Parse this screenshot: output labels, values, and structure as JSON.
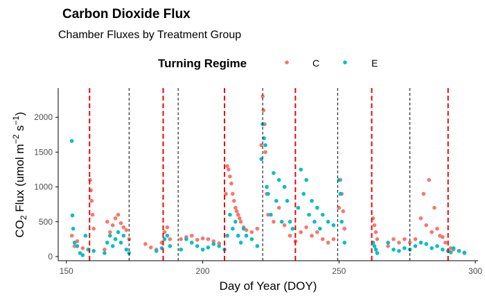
{
  "chart_data": {
    "type": "scatter",
    "title": "Carbon Dioxide Flux",
    "subtitle": "Chamber Fluxes by Treatment Group",
    "xlabel": "Day of Year (DOY)",
    "ylabel": "CO2 Flux (umol m-2 s-1)",
    "xlim": [
      147,
      301
    ],
    "ylim": [
      -60,
      2420
    ],
    "xticks": [
      150,
      200,
      250,
      300
    ],
    "yticks": [
      0,
      500,
      1000,
      1500,
      2000
    ],
    "grid": false,
    "legend": {
      "title": "Turning Regime",
      "position": "top",
      "entries": [
        {
          "label": "C",
          "color": "#F8766D"
        },
        {
          "label": "E",
          "color": "#00BFC4"
        }
      ]
    },
    "vlines_red_dashed": [
      158.5,
      185.5,
      208,
      234,
      262,
      290
    ],
    "vlines_black_dashed": [
      173,
      191,
      222,
      249.5,
      276
    ],
    "series": [
      {
        "name": "C",
        "color": "#F8766D",
        "points": [
          [
            152,
            300
          ],
          [
            153,
            150
          ],
          [
            154,
            220
          ],
          [
            156,
            120
          ],
          [
            158,
            100
          ],
          [
            158.7,
            1100
          ],
          [
            159,
            950
          ],
          [
            159.3,
            800
          ],
          [
            159.6,
            600
          ],
          [
            160,
            400
          ],
          [
            164,
            100
          ],
          [
            165,
            500
          ],
          [
            166,
            350
          ],
          [
            167,
            450
          ],
          [
            168,
            550
          ],
          [
            169,
            600
          ],
          [
            170,
            480
          ],
          [
            171,
            420
          ],
          [
            172,
            380
          ],
          [
            173,
            250
          ],
          [
            179,
            180
          ],
          [
            181,
            130
          ],
          [
            183,
            100
          ],
          [
            185,
            200
          ],
          [
            186,
            350
          ],
          [
            187,
            420
          ],
          [
            188,
            250
          ],
          [
            192,
            250
          ],
          [
            194,
            280
          ],
          [
            196,
            300
          ],
          [
            198,
            240
          ],
          [
            200,
            260
          ],
          [
            202,
            250
          ],
          [
            204,
            220
          ],
          [
            206,
            190
          ],
          [
            208.5,
            900
          ],
          [
            209,
            1300
          ],
          [
            209.5,
            1250
          ],
          [
            210,
            1150
          ],
          [
            210.5,
            1050
          ],
          [
            211,
            900
          ],
          [
            211.5,
            800
          ],
          [
            212,
            700
          ],
          [
            212.5,
            650
          ],
          [
            213,
            600
          ],
          [
            213.5,
            550
          ],
          [
            214,
            500
          ],
          [
            215,
            420
          ],
          [
            216,
            380
          ],
          [
            218,
            350
          ],
          [
            220,
            400
          ],
          [
            221.5,
            1600
          ],
          [
            222,
            2300
          ],
          [
            222.3,
            2100
          ],
          [
            222.7,
            1900
          ],
          [
            223,
            1500
          ],
          [
            223.5,
            900
          ],
          [
            224,
            600
          ],
          [
            226,
            500
          ],
          [
            228,
            700
          ],
          [
            230,
            450
          ],
          [
            232,
            300
          ],
          [
            234,
            220
          ],
          [
            236,
            350
          ],
          [
            238,
            420
          ],
          [
            240,
            300
          ],
          [
            242,
            350
          ],
          [
            244,
            250
          ],
          [
            246,
            200
          ],
          [
            248,
            250
          ],
          [
            250,
            700
          ],
          [
            250.5,
            1100
          ],
          [
            251,
            900
          ],
          [
            251.5,
            650
          ],
          [
            252,
            400
          ],
          [
            262.5,
            550
          ],
          [
            263,
            450
          ],
          [
            263.5,
            350
          ],
          [
            264,
            250
          ],
          [
            268,
            150
          ],
          [
            270,
            250
          ],
          [
            272,
            200
          ],
          [
            274,
            250
          ],
          [
            276,
            200
          ],
          [
            278,
            250
          ],
          [
            280,
            550
          ],
          [
            281,
            900
          ],
          [
            282,
            450
          ],
          [
            283,
            1100
          ],
          [
            284,
            350
          ],
          [
            285,
            700
          ],
          [
            286,
            400
          ],
          [
            287,
            300
          ],
          [
            288,
            280
          ],
          [
            289,
            200
          ],
          [
            291,
            120
          ],
          [
            292,
            100
          ],
          [
            294,
            80
          ],
          [
            296,
            60
          ]
        ]
      },
      {
        "name": "E",
        "color": "#00BFC4",
        "points": [
          [
            152,
            1660
          ],
          [
            152.2,
            590
          ],
          [
            152.5,
            400
          ],
          [
            153,
            200
          ],
          [
            154,
            150
          ],
          [
            155,
            50
          ],
          [
            156,
            20
          ],
          [
            157,
            300
          ],
          [
            158,
            100
          ],
          [
            160,
            80
          ],
          [
            164,
            50
          ],
          [
            165,
            200
          ],
          [
            166,
            300
          ],
          [
            167,
            150
          ],
          [
            168,
            250
          ],
          [
            169,
            350
          ],
          [
            170,
            200
          ],
          [
            171,
            300
          ],
          [
            172,
            100
          ],
          [
            173,
            50
          ],
          [
            183,
            80
          ],
          [
            185,
            120
          ],
          [
            186,
            250
          ],
          [
            187,
            300
          ],
          [
            188,
            150
          ],
          [
            192,
            100
          ],
          [
            194,
            250
          ],
          [
            196,
            200
          ],
          [
            198,
            150
          ],
          [
            200,
            100
          ],
          [
            202,
            130
          ],
          [
            204,
            180
          ],
          [
            206,
            150
          ],
          [
            208,
            100
          ],
          [
            209,
            300
          ],
          [
            210,
            600
          ],
          [
            211,
            400
          ],
          [
            212,
            500
          ],
          [
            213,
            300
          ],
          [
            214,
            200
          ],
          [
            215,
            400
          ],
          [
            216,
            300
          ],
          [
            218,
            250
          ],
          [
            220,
            150
          ],
          [
            221.5,
            1400
          ],
          [
            222,
            1900
          ],
          [
            222.5,
            1700
          ],
          [
            223,
            1600
          ],
          [
            223.5,
            1000
          ],
          [
            224,
            900
          ],
          [
            225,
            600
          ],
          [
            226,
            1200
          ],
          [
            227,
            800
          ],
          [
            228,
            1100
          ],
          [
            229,
            500
          ],
          [
            230,
            1000
          ],
          [
            231,
            800
          ],
          [
            232,
            500
          ],
          [
            233,
            400
          ],
          [
            235,
            700
          ],
          [
            236,
            1250
          ],
          [
            237,
            900
          ],
          [
            238,
            1100
          ],
          [
            239,
            600
          ],
          [
            240,
            800
          ],
          [
            241,
            500
          ],
          [
            242,
            700
          ],
          [
            243,
            400
          ],
          [
            244,
            600
          ],
          [
            246,
            500
          ],
          [
            248,
            450
          ],
          [
            250,
            1100
          ],
          [
            250.5,
            900
          ],
          [
            251,
            500
          ],
          [
            252,
            200
          ],
          [
            262.5,
            200
          ],
          [
            263,
            150
          ],
          [
            263.5,
            100
          ],
          [
            264,
            50
          ],
          [
            268,
            200
          ],
          [
            270,
            100
          ],
          [
            272,
            80
          ],
          [
            274,
            120
          ],
          [
            276,
            100
          ],
          [
            278,
            150
          ],
          [
            280,
            200
          ],
          [
            282,
            180
          ],
          [
            284,
            120
          ],
          [
            286,
            150
          ],
          [
            288,
            100
          ],
          [
            290,
            80
          ],
          [
            291,
            60
          ],
          [
            292,
            120
          ],
          [
            294,
            80
          ],
          [
            296,
            50
          ]
        ]
      }
    ]
  }
}
